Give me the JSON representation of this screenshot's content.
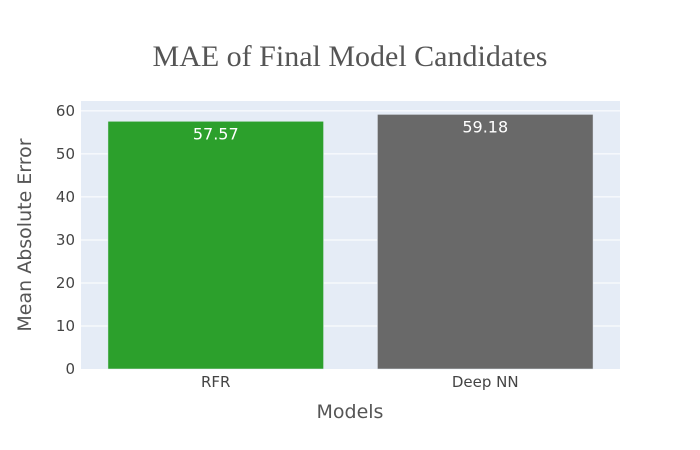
{
  "chart_data": {
    "type": "bar",
    "title": "MAE of Final Model Candidates",
    "xlabel": "Models",
    "ylabel": "Mean Absolute Error",
    "categories": [
      "RFR",
      "Deep NN"
    ],
    "values": [
      57.57,
      59.18
    ],
    "data_labels": [
      "57.57",
      "59.18"
    ],
    "bar_colors": [
      "#2ca02c",
      "#696969"
    ],
    "ylim": [
      0,
      62.3
    ],
    "yticks": [
      0,
      10,
      20,
      30,
      40,
      50,
      60
    ],
    "grid": true,
    "plot_background": "#e5ecf6",
    "legend": "none"
  }
}
